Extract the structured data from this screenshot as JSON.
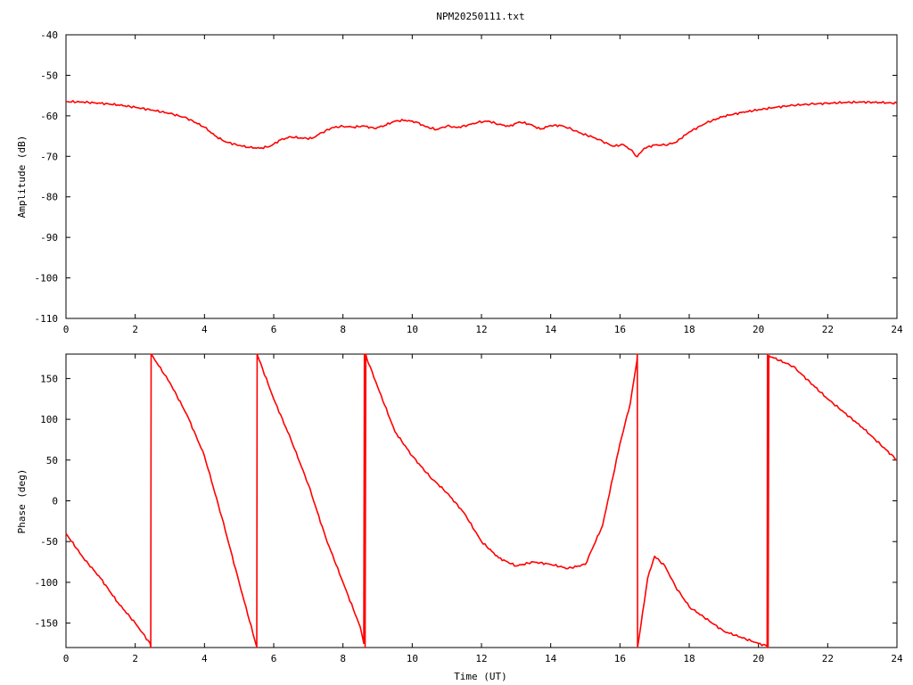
{
  "title": "NPM20250111.txt",
  "colors": {
    "trace": "#ff0000",
    "axes": "#000000",
    "background": "#ffffff"
  },
  "chart_data": [
    {
      "type": "line",
      "title": "NPM20250111.txt",
      "ylabel": "Amplitude (dB)",
      "xlabel": "",
      "xlim": [
        0,
        24
      ],
      "ylim": [
        -110,
        -40
      ],
      "xticks": [
        "0",
        "2",
        "4",
        "6",
        "8",
        "10",
        "12",
        "14",
        "16",
        "18",
        "20",
        "22",
        "24"
      ],
      "yticks": [
        "-40",
        "-50",
        "-60",
        "-70",
        "-80",
        "-90",
        "-100",
        "-110"
      ],
      "grid": false,
      "legend": "none",
      "series": [
        {
          "x": [
            0,
            0.5,
            1,
            1.5,
            2,
            2.5,
            3,
            3.5,
            4,
            4.3,
            4.6,
            5,
            5.3,
            5.6,
            5.9,
            6.2,
            6.5,
            6.8,
            7.1,
            7.4,
            7.7,
            8,
            8.3,
            8.6,
            8.9,
            9.2,
            9.5,
            9.8,
            10.1,
            10.4,
            10.7,
            11,
            11.3,
            11.6,
            11.9,
            12.2,
            12.5,
            12.8,
            13.1,
            13.4,
            13.7,
            14,
            14.3,
            14.6,
            14.9,
            15.2,
            15.5,
            15.8,
            16.1,
            16.3,
            16.5,
            16.7,
            17,
            17.3,
            17.6,
            18,
            18.5,
            19,
            19.5,
            20,
            20.5,
            21,
            21.5,
            22,
            22.5,
            23,
            23.5,
            24
          ],
          "y": [
            -56.5,
            -56.6,
            -56.9,
            -57.3,
            -57.9,
            -58.6,
            -59.4,
            -60.6,
            -62.8,
            -64.9,
            -66.4,
            -67.3,
            -67.8,
            -68,
            -67.5,
            -65.9,
            -65.2,
            -65.5,
            -65.6,
            -64.1,
            -62.9,
            -62.6,
            -62.8,
            -62.5,
            -63.1,
            -62.4,
            -61.3,
            -61.1,
            -61.5,
            -62.7,
            -63.4,
            -62.5,
            -62.9,
            -62.3,
            -61.6,
            -61.3,
            -62.1,
            -62.6,
            -61.5,
            -62.1,
            -63.3,
            -62.4,
            -62.4,
            -63.3,
            -64.4,
            -65.2,
            -66.3,
            -67.5,
            -67.1,
            -68.3,
            -70.1,
            -68,
            -67.2,
            -67.2,
            -66.6,
            -64,
            -61.7,
            -60.1,
            -59.2,
            -58.5,
            -57.9,
            -57.4,
            -57.1,
            -56.9,
            -56.7,
            -56.6,
            -56.7,
            -56.9
          ]
        }
      ]
    },
    {
      "type": "line",
      "title": "",
      "ylabel": "Phase (deg)",
      "xlabel": "Time (UT)",
      "xlim": [
        0,
        24
      ],
      "ylim": [
        -180,
        180
      ],
      "xticks": [
        "0",
        "2",
        "4",
        "6",
        "8",
        "10",
        "12",
        "14",
        "16",
        "18",
        "20",
        "22",
        "24"
      ],
      "yticks": [
        "150",
        "100",
        "50",
        "0",
        "-50",
        "-100",
        "-150"
      ],
      "grid": false,
      "legend": "none",
      "series": [
        {
          "x": [
            0,
            0.5,
            1,
            1.5,
            2,
            2.43,
            2.45,
            2.46,
            3,
            3.5,
            4,
            4.5,
            5,
            5.5,
            5.51,
            5.52,
            6,
            6.5,
            7,
            7.5,
            8,
            8.5,
            8.6,
            8.62,
            8.64,
            8.66,
            8.68,
            9,
            9.5,
            10,
            10.5,
            11,
            11.5,
            12,
            12.5,
            13,
            13.5,
            14,
            14.5,
            15,
            15.5,
            16,
            16.3,
            16.49,
            16.5,
            16.51,
            16.8,
            17,
            17.3,
            17.6,
            18,
            19,
            20,
            20.24,
            20.25,
            20.26,
            20.28,
            20.3,
            21,
            22,
            23,
            24
          ],
          "y": [
            -40,
            -70,
            -95,
            -125,
            -150,
            -175,
            -180,
            180,
            145,
            105,
            55,
            -20,
            -100,
            -178,
            -180,
            180,
            125,
            75,
            20,
            -45,
            -100,
            -155,
            -175,
            180,
            -180,
            180,
            176,
            140,
            85,
            55,
            30,
            10,
            -15,
            -50,
            -70,
            -80,
            -75,
            -78,
            -83,
            -78,
            -30,
            70,
            120,
            172,
            180,
            -180,
            -95,
            -68,
            -80,
            -105,
            -130,
            -160,
            -175,
            -178,
            -180,
            180,
            -180,
            178,
            165,
            125,
            90,
            50
          ]
        }
      ]
    }
  ]
}
